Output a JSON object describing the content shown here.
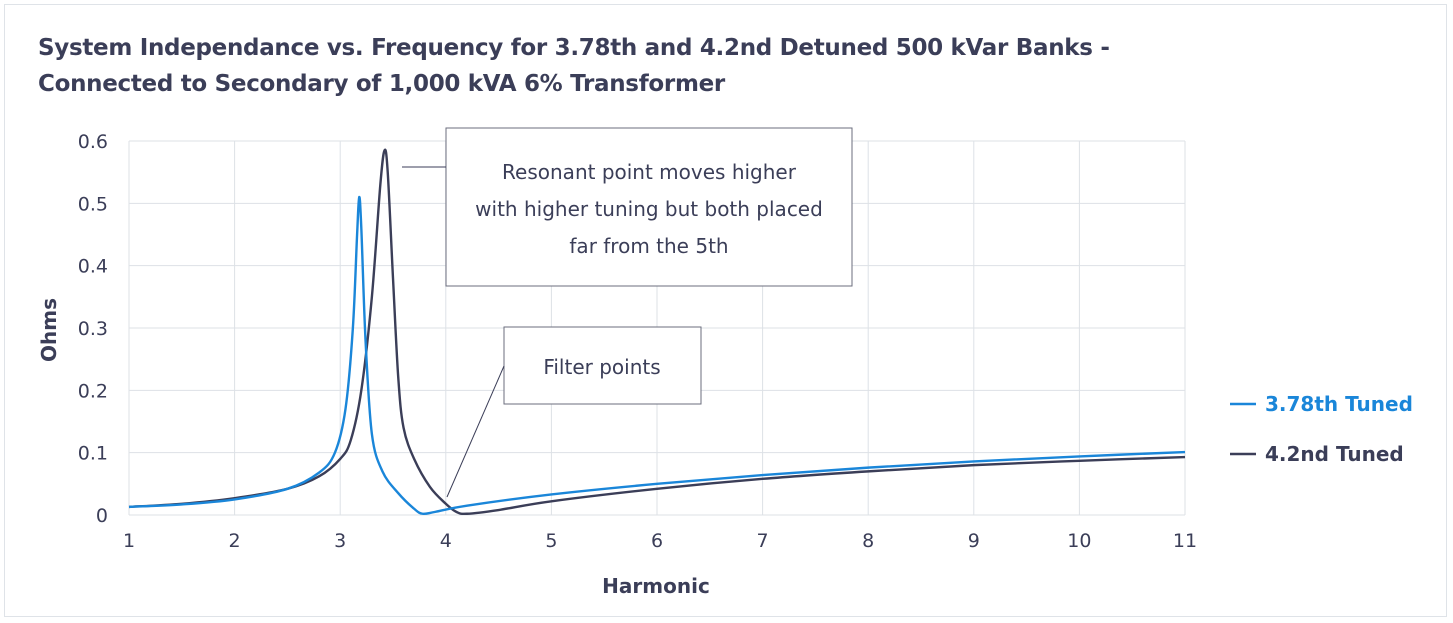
{
  "chart_data": {
    "type": "line",
    "title_line1": "System Independance vs. Frequency for 3.78th and 4.2nd Detuned 500 kVar Banks -",
    "title_line2": "Connected to Secondary of 1,000 kVA 6% Transformer",
    "xlabel": "Harmonic",
    "ylabel": "Ohms",
    "xlim": [
      1,
      11
    ],
    "ylim": [
      0,
      0.6
    ],
    "x_ticks": [
      "1",
      "2",
      "3",
      "4",
      "5",
      "6",
      "7",
      "8",
      "9",
      "10",
      "11"
    ],
    "y_ticks": [
      "0",
      "0.1",
      "0.2",
      "0.3",
      "0.4",
      "0.5",
      "0.6"
    ],
    "grid": true,
    "legend_position": "right",
    "series": [
      {
        "name": "3.78th Tuned",
        "color": "#1a86d9",
        "points": [
          [
            1,
            0.013
          ],
          [
            1.5,
            0.017
          ],
          [
            2,
            0.025
          ],
          [
            2.5,
            0.042
          ],
          [
            2.8,
            0.068
          ],
          [
            2.95,
            0.1
          ],
          [
            3.05,
            0.17
          ],
          [
            3.12,
            0.3
          ],
          [
            3.16,
            0.45
          ],
          [
            3.18,
            0.51
          ],
          [
            3.2,
            0.46
          ],
          [
            3.24,
            0.28
          ],
          [
            3.3,
            0.13
          ],
          [
            3.4,
            0.07
          ],
          [
            3.55,
            0.035
          ],
          [
            3.7,
            0.01
          ],
          [
            3.78,
            0.002
          ],
          [
            3.9,
            0.005
          ],
          [
            4.2,
            0.015
          ],
          [
            5,
            0.033
          ],
          [
            6,
            0.05
          ],
          [
            7,
            0.064
          ],
          [
            8,
            0.076
          ],
          [
            9,
            0.086
          ],
          [
            10,
            0.094
          ],
          [
            11,
            0.101
          ]
        ]
      },
      {
        "name": "4.2nd Tuned",
        "color": "#3b3e58",
        "points": [
          [
            1,
            0.013
          ],
          [
            1.5,
            0.018
          ],
          [
            2,
            0.027
          ],
          [
            2.5,
            0.042
          ],
          [
            2.8,
            0.062
          ],
          [
            3,
            0.09
          ],
          [
            3.1,
            0.12
          ],
          [
            3.2,
            0.2
          ],
          [
            3.3,
            0.35
          ],
          [
            3.38,
            0.53
          ],
          [
            3.42,
            0.585
          ],
          [
            3.45,
            0.55
          ],
          [
            3.5,
            0.38
          ],
          [
            3.55,
            0.22
          ],
          [
            3.6,
            0.14
          ],
          [
            3.7,
            0.09
          ],
          [
            3.85,
            0.045
          ],
          [
            4,
            0.018
          ],
          [
            4.1,
            0.005
          ],
          [
            4.2,
            0.002
          ],
          [
            4.5,
            0.008
          ],
          [
            5,
            0.022
          ],
          [
            6,
            0.042
          ],
          [
            7,
            0.058
          ],
          [
            8,
            0.07
          ],
          [
            9,
            0.08
          ],
          [
            10,
            0.087
          ],
          [
            11,
            0.093
          ]
        ]
      }
    ],
    "annotations": [
      {
        "name": "resonant-annotation",
        "lines": [
          "Resonant point moves higher",
          "with higher tuning but both placed",
          "far from the 5th"
        ]
      },
      {
        "name": "filter-annotation",
        "lines": [
          "Filter points"
        ]
      }
    ]
  }
}
